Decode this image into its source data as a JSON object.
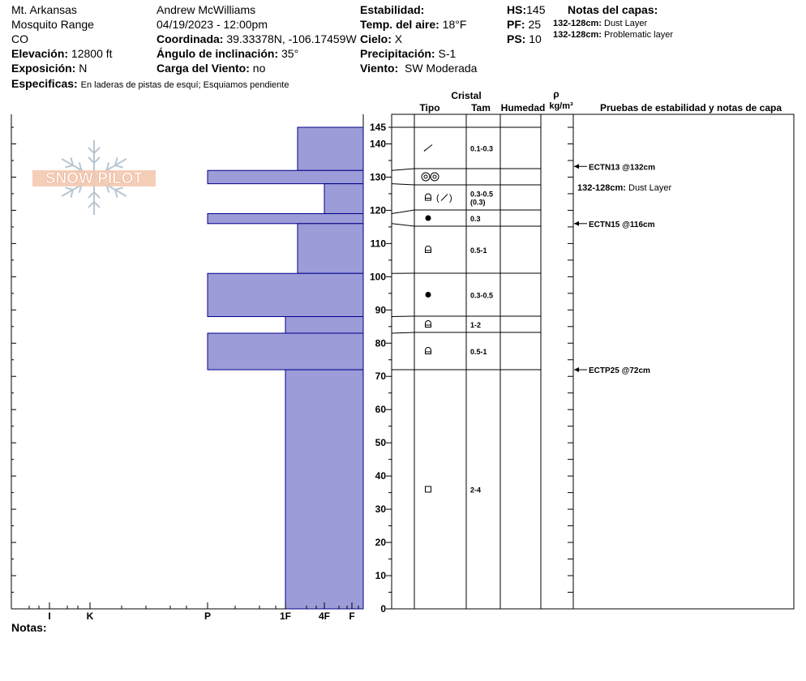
{
  "header": {
    "location": "Mt. Arkansas",
    "range": "Mosquito Range",
    "state": "CO",
    "elevation_label": "Elevación:",
    "elevation_value": "12800 ft",
    "aspect_label": "Exposición:",
    "aspect_value": "N",
    "specifics_label": "Especificas:",
    "specifics_value": "En laderas de pistas de esquí; Esquiamos pendiente",
    "observer": "Andrew McWilliams",
    "datetime": "04/19/2023 - 12:00pm",
    "coord_label": "Coordinada:",
    "coord_value": "39.33378N, -106.17459W",
    "slope_label": "Ángulo de inclinación:",
    "slope_value": "35°",
    "wind_load_label": "Carga del Viento:",
    "wind_load_value": "no",
    "stability_label": "Estabilidad:",
    "air_temp_label": "Temp. del aire:",
    "air_temp_value": "18°F",
    "sky_label": "Cielo:",
    "sky_value": "X",
    "precip_label": "Precipitación:",
    "precip_value": "S-1",
    "wind_label": "Viento:",
    "wind_value": "SW Moderada",
    "hs_label": "HS:",
    "hs_value": "145",
    "pf_label": "PF:",
    "pf_value": "25",
    "ps_label": "PS:",
    "ps_value": "10",
    "layer_notes_title": "Notas del capas:",
    "layer_notes": [
      {
        "range": "132-128cm:",
        "text": "Dust Layer"
      },
      {
        "range": "132-128cm:",
        "text": "Problematic layer"
      }
    ]
  },
  "logo_text": "SNOW PILOT",
  "columns": {
    "cristal": "Cristal",
    "tipo": "Tipo",
    "tam": "Tam",
    "humedad": "Humedad",
    "rho": "ρ",
    "density_unit": "kg/m³",
    "tests": "Pruebas de estabilidad y notas de capa"
  },
  "notes_label": "Notas:",
  "colors": {
    "fill": "#9c9cd8",
    "stroke": "#00008b"
  },
  "chart_data": {
    "type": "hardness_profile",
    "hardness_axis": [
      "I",
      "K",
      "P",
      "1F",
      "4F",
      "F"
    ],
    "depth_ticks": [
      145,
      140,
      130,
      120,
      110,
      100,
      90,
      80,
      70,
      60,
      50,
      40,
      30,
      20,
      10,
      0
    ],
    "depth_max": 145,
    "layers": [
      {
        "top": 145,
        "bottom": 132,
        "hardness": "4F",
        "grain": "decomp",
        "size": "0.1-0.3",
        "size2": ""
      },
      {
        "top": 132,
        "bottom": 128,
        "hardness": "P",
        "grain": "rounds",
        "size": "",
        "size2": ""
      },
      {
        "top": 128,
        "bottom": 119,
        "hardness": "4F-F",
        "grain": "facet-decomp",
        "size": "0.3-0.5",
        "size2": "(0.3)"
      },
      {
        "top": 119,
        "bottom": 116,
        "hardness": "P",
        "grain": "round",
        "size": "0.3",
        "size2": ""
      },
      {
        "top": 116,
        "bottom": 101,
        "hardness": "4F",
        "grain": "faceted",
        "size": "0.5-1",
        "size2": ""
      },
      {
        "top": 101,
        "bottom": 88,
        "hardness": "P",
        "grain": "round",
        "size": "0.3-0.5",
        "size2": ""
      },
      {
        "top": 88,
        "bottom": 83,
        "hardness": "1F",
        "grain": "faceted",
        "size": "1-2",
        "size2": ""
      },
      {
        "top": 83,
        "bottom": 72,
        "hardness": "P",
        "grain": "faceted",
        "size": "0.5-1",
        "size2": ""
      },
      {
        "top": 72,
        "bottom": 0,
        "hardness": "1F",
        "grain": "square",
        "size": "2-4",
        "size2": ""
      }
    ],
    "tests": [
      {
        "depth": 132,
        "label": "ECTN13 @132cm"
      },
      {
        "depth": 116,
        "label": "ECTN15 @116cm"
      },
      {
        "depth": 72,
        "label": "ECTP25 @72cm"
      }
    ],
    "layer_comment": {
      "range": "132-128cm:",
      "text": "Dust Layer"
    }
  }
}
